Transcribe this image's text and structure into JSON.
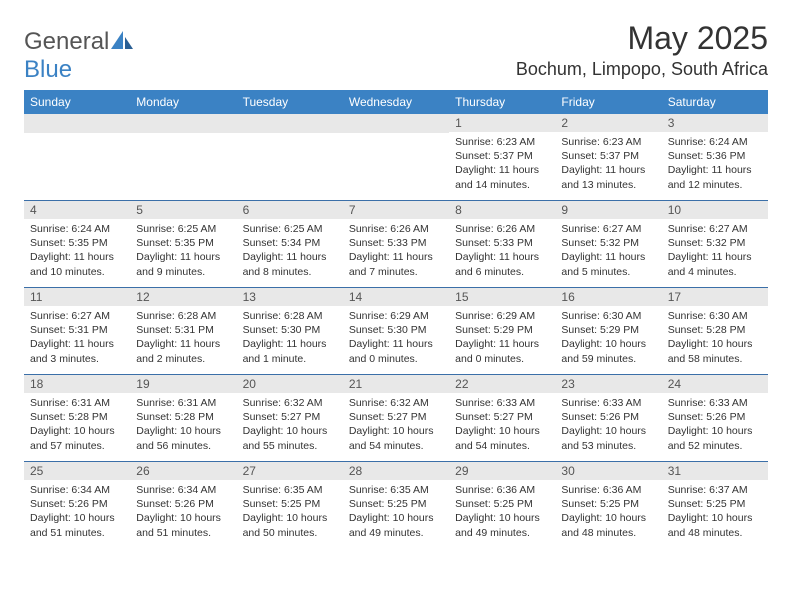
{
  "logo": {
    "text1": "General",
    "text2": "Blue"
  },
  "title": "May 2025",
  "location": "Bochum, Limpopo, South Africa",
  "colors": {
    "header_bg": "#3b82c4",
    "header_text": "#ffffff",
    "daynum_bg": "#e8e8e8",
    "rule": "#3b6fa8",
    "logo_gray": "#555555",
    "logo_blue": "#3b82c4"
  },
  "weekdays": [
    "Sunday",
    "Monday",
    "Tuesday",
    "Wednesday",
    "Thursday",
    "Friday",
    "Saturday"
  ],
  "first_weekday_index": 4,
  "days": [
    {
      "n": "1",
      "sunrise": "6:23 AM",
      "sunset": "5:37 PM",
      "daylight": "11 hours and 14 minutes."
    },
    {
      "n": "2",
      "sunrise": "6:23 AM",
      "sunset": "5:37 PM",
      "daylight": "11 hours and 13 minutes."
    },
    {
      "n": "3",
      "sunrise": "6:24 AM",
      "sunset": "5:36 PM",
      "daylight": "11 hours and 12 minutes."
    },
    {
      "n": "4",
      "sunrise": "6:24 AM",
      "sunset": "5:35 PM",
      "daylight": "11 hours and 10 minutes."
    },
    {
      "n": "5",
      "sunrise": "6:25 AM",
      "sunset": "5:35 PM",
      "daylight": "11 hours and 9 minutes."
    },
    {
      "n": "6",
      "sunrise": "6:25 AM",
      "sunset": "5:34 PM",
      "daylight": "11 hours and 8 minutes."
    },
    {
      "n": "7",
      "sunrise": "6:26 AM",
      "sunset": "5:33 PM",
      "daylight": "11 hours and 7 minutes."
    },
    {
      "n": "8",
      "sunrise": "6:26 AM",
      "sunset": "5:33 PM",
      "daylight": "11 hours and 6 minutes."
    },
    {
      "n": "9",
      "sunrise": "6:27 AM",
      "sunset": "5:32 PM",
      "daylight": "11 hours and 5 minutes."
    },
    {
      "n": "10",
      "sunrise": "6:27 AM",
      "sunset": "5:32 PM",
      "daylight": "11 hours and 4 minutes."
    },
    {
      "n": "11",
      "sunrise": "6:27 AM",
      "sunset": "5:31 PM",
      "daylight": "11 hours and 3 minutes."
    },
    {
      "n": "12",
      "sunrise": "6:28 AM",
      "sunset": "5:31 PM",
      "daylight": "11 hours and 2 minutes."
    },
    {
      "n": "13",
      "sunrise": "6:28 AM",
      "sunset": "5:30 PM",
      "daylight": "11 hours and 1 minute."
    },
    {
      "n": "14",
      "sunrise": "6:29 AM",
      "sunset": "5:30 PM",
      "daylight": "11 hours and 0 minutes."
    },
    {
      "n": "15",
      "sunrise": "6:29 AM",
      "sunset": "5:29 PM",
      "daylight": "11 hours and 0 minutes."
    },
    {
      "n": "16",
      "sunrise": "6:30 AM",
      "sunset": "5:29 PM",
      "daylight": "10 hours and 59 minutes."
    },
    {
      "n": "17",
      "sunrise": "6:30 AM",
      "sunset": "5:28 PM",
      "daylight": "10 hours and 58 minutes."
    },
    {
      "n": "18",
      "sunrise": "6:31 AM",
      "sunset": "5:28 PM",
      "daylight": "10 hours and 57 minutes."
    },
    {
      "n": "19",
      "sunrise": "6:31 AM",
      "sunset": "5:28 PM",
      "daylight": "10 hours and 56 minutes."
    },
    {
      "n": "20",
      "sunrise": "6:32 AM",
      "sunset": "5:27 PM",
      "daylight": "10 hours and 55 minutes."
    },
    {
      "n": "21",
      "sunrise": "6:32 AM",
      "sunset": "5:27 PM",
      "daylight": "10 hours and 54 minutes."
    },
    {
      "n": "22",
      "sunrise": "6:33 AM",
      "sunset": "5:27 PM",
      "daylight": "10 hours and 54 minutes."
    },
    {
      "n": "23",
      "sunrise": "6:33 AM",
      "sunset": "5:26 PM",
      "daylight": "10 hours and 53 minutes."
    },
    {
      "n": "24",
      "sunrise": "6:33 AM",
      "sunset": "5:26 PM",
      "daylight": "10 hours and 52 minutes."
    },
    {
      "n": "25",
      "sunrise": "6:34 AM",
      "sunset": "5:26 PM",
      "daylight": "10 hours and 51 minutes."
    },
    {
      "n": "26",
      "sunrise": "6:34 AM",
      "sunset": "5:26 PM",
      "daylight": "10 hours and 51 minutes."
    },
    {
      "n": "27",
      "sunrise": "6:35 AM",
      "sunset": "5:25 PM",
      "daylight": "10 hours and 50 minutes."
    },
    {
      "n": "28",
      "sunrise": "6:35 AM",
      "sunset": "5:25 PM",
      "daylight": "10 hours and 49 minutes."
    },
    {
      "n": "29",
      "sunrise": "6:36 AM",
      "sunset": "5:25 PM",
      "daylight": "10 hours and 49 minutes."
    },
    {
      "n": "30",
      "sunrise": "6:36 AM",
      "sunset": "5:25 PM",
      "daylight": "10 hours and 48 minutes."
    },
    {
      "n": "31",
      "sunrise": "6:37 AM",
      "sunset": "5:25 PM",
      "daylight": "10 hours and 48 minutes."
    }
  ],
  "labels": {
    "sunrise": "Sunrise:",
    "sunset": "Sunset:",
    "daylight": "Daylight:"
  }
}
